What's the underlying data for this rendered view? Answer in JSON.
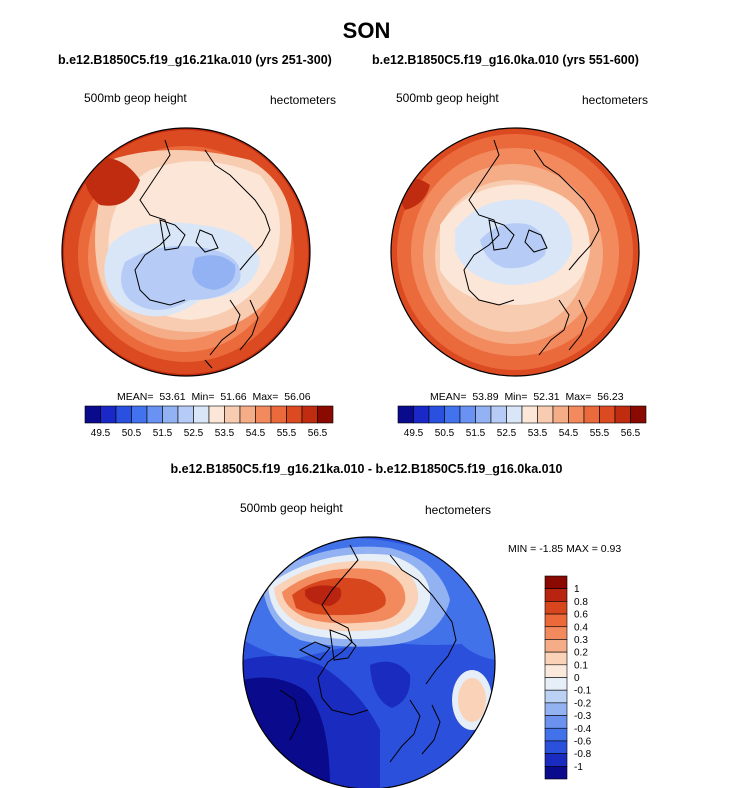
{
  "title": "SON",
  "panels": [
    {
      "case_title": "b.e12.B1850C5.f19_g16.21ka.010 (yrs 251-300)",
      "left_label": "500mb geop height",
      "right_label": "hectometers",
      "stats": {
        "mean_label": "MEAN=",
        "mean": "53.61",
        "min_label": "Min=",
        "min": "51.66",
        "max_label": "Max=",
        "max": "56.06"
      },
      "colorbar_ticks": [
        "49.5",
        "50.5",
        "51.5",
        "52.5",
        "53.5",
        "54.5",
        "55.5",
        "56.5"
      ]
    },
    {
      "case_title": "b.e12.B1850C5.f19_g16.0ka.010 (yrs 551-600)",
      "left_label": "500mb geop height",
      "right_label": "hectometers",
      "stats": {
        "mean_label": "MEAN=",
        "mean": "53.89",
        "min_label": "Min=",
        "min": "52.31",
        "max_label": "Max=",
        "max": "56.23"
      },
      "colorbar_ticks": [
        "49.5",
        "50.5",
        "51.5",
        "52.5",
        "53.5",
        "54.5",
        "55.5",
        "56.5"
      ]
    }
  ],
  "difference": {
    "title": "b.e12.B1850C5.f19_g16.21ka.010 - b.e12.B1850C5.f19_g16.0ka.010",
    "left_label": "500mb geop height",
    "right_label": "hectometers",
    "minmax": "MIN =  -1.85 MAX =   0.93",
    "colorbar_ticks": [
      "1",
      "0.8",
      "0.6",
      "0.4",
      "0.3",
      "0.2",
      "0.1",
      "0",
      "-0.1",
      "-0.2",
      "-0.3",
      "-0.4",
      "-0.6",
      "-0.8",
      "-1"
    ]
  },
  "chart_data": [
    {
      "type": "heatmap",
      "projection": "north polar stereographic",
      "title": "b.e12.B1850C5.f19_g16.21ka.010 (yrs 251-300)",
      "variable": "500mb geop height",
      "units": "hectometers",
      "mean": 53.61,
      "min": 51.66,
      "max": 56.06,
      "levels": [
        49.5,
        50.0,
        50.5,
        51.0,
        51.5,
        52.0,
        52.5,
        53.0,
        53.5,
        54.0,
        54.5,
        55.0,
        55.5,
        56.0,
        56.5
      ],
      "colors": [
        "#0a0a8c",
        "#1a28c8",
        "#2a50e0",
        "#4272ee",
        "#6a92f2",
        "#92b2f4",
        "#b6ccf6",
        "#d8e6f8",
        "#fbe6d8",
        "#f8ccb0",
        "#f5ad88",
        "#f28a5e",
        "#ea6a3c",
        "#dc4a22",
        "#c02c10",
        "#8a0a02"
      ]
    },
    {
      "type": "heatmap",
      "projection": "north polar stereographic",
      "title": "b.e12.B1850C5.f19_g16.0ka.010 (yrs 551-600)",
      "variable": "500mb geop height",
      "units": "hectometers",
      "mean": 53.89,
      "min": 52.31,
      "max": 56.23,
      "levels": [
        49.5,
        50.0,
        50.5,
        51.0,
        51.5,
        52.0,
        52.5,
        53.0,
        53.5,
        54.0,
        54.5,
        55.0,
        55.5,
        56.0,
        56.5
      ],
      "colors": [
        "#0a0a8c",
        "#1a28c8",
        "#2a50e0",
        "#4272ee",
        "#6a92f2",
        "#92b2f4",
        "#b6ccf6",
        "#d8e6f8",
        "#fbe6d8",
        "#f8ccb0",
        "#f5ad88",
        "#f28a5e",
        "#ea6a3c",
        "#dc4a22",
        "#c02c10",
        "#8a0a02"
      ]
    },
    {
      "type": "heatmap",
      "projection": "north polar stereographic",
      "title": "b.e12.B1850C5.f19_g16.21ka.010 - b.e12.B1850C5.f19_g16.0ka.010",
      "variable": "500mb geop height",
      "units": "hectometers",
      "min": -1.85,
      "max": 0.93,
      "levels": [
        1,
        0.8,
        0.6,
        0.4,
        0.3,
        0.2,
        0.1,
        0,
        -0.1,
        -0.2,
        -0.3,
        -0.4,
        -0.6,
        -0.8,
        -1
      ],
      "colors": [
        "#8a0a02",
        "#b82410",
        "#d8461e",
        "#ec6a3a",
        "#f28a5e",
        "#f5ad88",
        "#f9d2b8",
        "#fbe9dc",
        "#e6eef8",
        "#bcd2f4",
        "#92b2f2",
        "#6a92ee",
        "#4272ea",
        "#2a50dc",
        "#1a2cc0",
        "#0a0a8c"
      ]
    }
  ]
}
